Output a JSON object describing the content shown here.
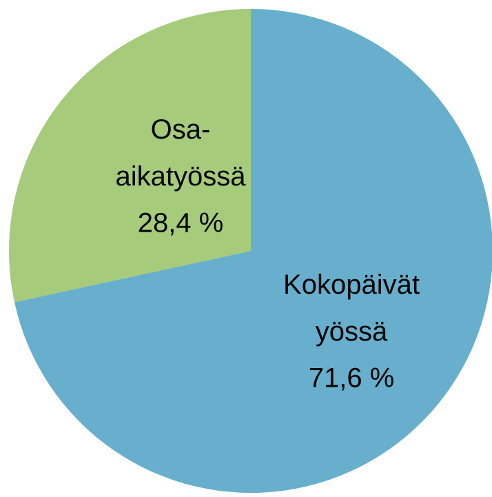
{
  "chart_data": {
    "type": "pie",
    "categories": [
      "Kokopäivätyössä",
      "Osa-aikatyössä"
    ],
    "values": [
      71.6,
      28.4
    ],
    "value_labels": [
      "71,6 %",
      "28,4 %"
    ],
    "colors": [
      "#67afcd",
      "#a6cb7b"
    ]
  }
}
